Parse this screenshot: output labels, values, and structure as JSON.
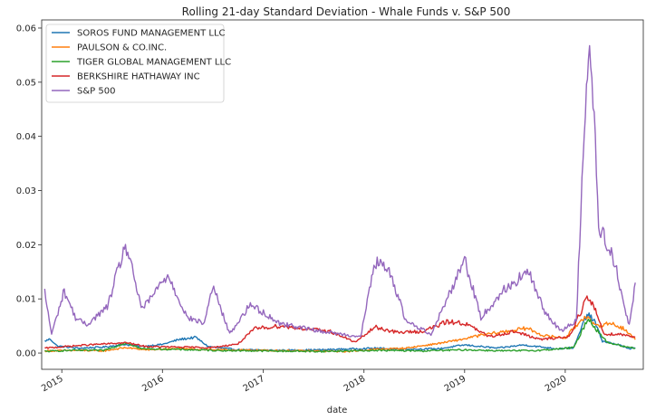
{
  "chart_data": {
    "type": "line",
    "title": "Rolling 21-day Standard Deviation - Whale Funds v. S&P 500",
    "xlabel": "date",
    "ylabel": "",
    "xlim": [
      "2014-10-20",
      "2020-10-10"
    ],
    "ylim": [
      -0.003,
      0.0615
    ],
    "x_ticks": [
      {
        "date": "2015-01-01",
        "label": "2015"
      },
      {
        "date": "2016-01-01",
        "label": "2016"
      },
      {
        "date": "2017-01-01",
        "label": "2017"
      },
      {
        "date": "2018-01-01",
        "label": "2018"
      },
      {
        "date": "2019-01-01",
        "label": "2019"
      },
      {
        "date": "2020-01-01",
        "label": "2020"
      }
    ],
    "y_ticks": [
      {
        "value": 0.0,
        "label": "0.00"
      },
      {
        "value": 0.01,
        "label": "0.01"
      },
      {
        "value": 0.02,
        "label": "0.02"
      },
      {
        "value": 0.03,
        "label": "0.03"
      },
      {
        "value": 0.04,
        "label": "0.04"
      },
      {
        "value": 0.05,
        "label": "0.05"
      },
      {
        "value": 0.06,
        "label": "0.06"
      }
    ],
    "grid": false,
    "legend_position": "top-left",
    "series": [
      {
        "name": "SOROS FUND MANAGEMENT LLC",
        "color": "#1f77b4",
        "points": [
          [
            "2014-10-31",
            0.0022
          ],
          [
            "2014-11-20",
            0.0026
          ],
          [
            "2014-12-15",
            0.0013
          ],
          [
            "2015-03-01",
            0.0009
          ],
          [
            "2015-06-01",
            0.0011
          ],
          [
            "2015-08-15",
            0.0016
          ],
          [
            "2015-10-15",
            0.0012
          ],
          [
            "2016-01-01",
            0.0016
          ],
          [
            "2016-03-01",
            0.0025
          ],
          [
            "2016-05-01",
            0.0029
          ],
          [
            "2016-06-15",
            0.0012
          ],
          [
            "2016-10-01",
            0.0006
          ],
          [
            "2017-03-01",
            0.0005
          ],
          [
            "2017-08-01",
            0.0006
          ],
          [
            "2018-02-10",
            0.0009
          ],
          [
            "2018-06-01",
            0.0007
          ],
          [
            "2018-10-01",
            0.0008
          ],
          [
            "2019-01-01",
            0.0015
          ],
          [
            "2019-05-01",
            0.0009
          ],
          [
            "2019-08-01",
            0.0015
          ],
          [
            "2019-12-01",
            0.0008
          ],
          [
            "2020-02-01",
            0.001
          ],
          [
            "2020-03-20",
            0.0072
          ],
          [
            "2020-04-15",
            0.006
          ],
          [
            "2020-05-15",
            0.0022
          ],
          [
            "2020-07-15",
            0.0015
          ],
          [
            "2020-08-15",
            0.0008
          ],
          [
            "2020-09-11",
            0.001
          ]
        ]
      },
      {
        "name": "PAULSON & CO.INC.",
        "color": "#ff7f0e",
        "points": [
          [
            "2014-10-31",
            0.0004
          ],
          [
            "2015-03-01",
            0.0005
          ],
          [
            "2015-06-01",
            0.0004
          ],
          [
            "2015-08-20",
            0.001
          ],
          [
            "2015-11-01",
            0.0006
          ],
          [
            "2016-03-01",
            0.0008
          ],
          [
            "2016-07-01",
            0.0006
          ],
          [
            "2017-01-01",
            0.0005
          ],
          [
            "2017-06-01",
            0.0004
          ],
          [
            "2017-11-01",
            0.0003
          ],
          [
            "2018-02-15",
            0.0007
          ],
          [
            "2018-06-01",
            0.0009
          ],
          [
            "2018-10-01",
            0.0018
          ],
          [
            "2018-12-20",
            0.0025
          ],
          [
            "2019-03-01",
            0.0033
          ],
          [
            "2019-06-01",
            0.004
          ],
          [
            "2019-08-15",
            0.0046
          ],
          [
            "2019-10-15",
            0.0032
          ],
          [
            "2020-01-01",
            0.0028
          ],
          [
            "2020-03-15",
            0.007
          ],
          [
            "2020-04-15",
            0.005
          ],
          [
            "2020-06-15",
            0.0055
          ],
          [
            "2020-08-01",
            0.0045
          ],
          [
            "2020-09-11",
            0.0025
          ]
        ]
      },
      {
        "name": "TIGER GLOBAL MANAGEMENT LLC",
        "color": "#2ca02c",
        "points": [
          [
            "2014-10-31",
            0.0003
          ],
          [
            "2015-02-01",
            0.0005
          ],
          [
            "2015-06-01",
            0.0005
          ],
          [
            "2015-08-25",
            0.0019
          ],
          [
            "2015-10-15",
            0.0008
          ],
          [
            "2016-02-01",
            0.0007
          ],
          [
            "2016-07-01",
            0.0005
          ],
          [
            "2017-01-01",
            0.0004
          ],
          [
            "2017-08-01",
            0.0003
          ],
          [
            "2018-02-10",
            0.0005
          ],
          [
            "2018-08-01",
            0.0004
          ],
          [
            "2019-01-01",
            0.0006
          ],
          [
            "2019-06-01",
            0.0004
          ],
          [
            "2019-10-01",
            0.0005
          ],
          [
            "2020-02-01",
            0.001
          ],
          [
            "2020-03-25",
            0.0065
          ],
          [
            "2020-04-20",
            0.0045
          ],
          [
            "2020-06-01",
            0.002
          ],
          [
            "2020-08-01",
            0.0012
          ],
          [
            "2020-09-11",
            0.0009
          ]
        ]
      },
      {
        "name": "BERKSHIRE HATHAWAY INC",
        "color": "#d62728",
        "points": [
          [
            "2014-10-31",
            0.0009
          ],
          [
            "2015-01-15",
            0.0012
          ],
          [
            "2015-04-01",
            0.0015
          ],
          [
            "2015-08-25",
            0.0019
          ],
          [
            "2015-11-01",
            0.0012
          ],
          [
            "2016-03-01",
            0.0011
          ],
          [
            "2016-07-01",
            0.001
          ],
          [
            "2016-10-01",
            0.0017
          ],
          [
            "2016-12-01",
            0.0045
          ],
          [
            "2017-03-01",
            0.005
          ],
          [
            "2017-06-01",
            0.0045
          ],
          [
            "2017-09-01",
            0.004
          ],
          [
            "2017-12-01",
            0.002
          ],
          [
            "2018-02-10",
            0.0048
          ],
          [
            "2018-05-01",
            0.0038
          ],
          [
            "2018-08-01",
            0.004
          ],
          [
            "2018-11-01",
            0.0058
          ],
          [
            "2019-01-01",
            0.0055
          ],
          [
            "2019-04-01",
            0.003
          ],
          [
            "2019-07-01",
            0.004
          ],
          [
            "2019-10-01",
            0.0025
          ],
          [
            "2020-01-15",
            0.003
          ],
          [
            "2020-03-20",
            0.0102
          ],
          [
            "2020-04-20",
            0.008
          ],
          [
            "2020-05-20",
            0.0035
          ],
          [
            "2020-07-15",
            0.0035
          ],
          [
            "2020-09-11",
            0.003
          ]
        ]
      },
      {
        "name": "S&P 500",
        "color": "#9467bd",
        "points": [
          [
            "2014-10-31",
            0.0112
          ],
          [
            "2014-11-25",
            0.0035
          ],
          [
            "2015-01-10",
            0.0115
          ],
          [
            "2015-02-20",
            0.0065
          ],
          [
            "2015-04-01",
            0.0052
          ],
          [
            "2015-06-15",
            0.0085
          ],
          [
            "2015-08-20",
            0.02
          ],
          [
            "2015-10-20",
            0.008
          ],
          [
            "2016-01-20",
            0.0145
          ],
          [
            "2016-04-01",
            0.0065
          ],
          [
            "2016-06-01",
            0.0055
          ],
          [
            "2016-07-01",
            0.0125
          ],
          [
            "2016-09-01",
            0.0035
          ],
          [
            "2016-11-15",
            0.009
          ],
          [
            "2017-03-01",
            0.0055
          ],
          [
            "2017-08-01",
            0.004
          ],
          [
            "2017-12-20",
            0.003
          ],
          [
            "2018-02-10",
            0.017
          ],
          [
            "2018-04-10",
            0.0145
          ],
          [
            "2018-06-01",
            0.006
          ],
          [
            "2018-09-01",
            0.0035
          ],
          [
            "2018-10-25",
            0.0095
          ],
          [
            "2019-01-01",
            0.0175
          ],
          [
            "2019-03-01",
            0.0065
          ],
          [
            "2019-05-20",
            0.0115
          ],
          [
            "2019-08-20",
            0.015
          ],
          [
            "2019-10-15",
            0.008
          ],
          [
            "2019-12-15",
            0.004
          ],
          [
            "2020-02-10",
            0.006
          ],
          [
            "2020-03-18",
            0.05
          ],
          [
            "2020-03-25",
            0.0585
          ],
          [
            "2020-04-15",
            0.045
          ],
          [
            "2020-05-01",
            0.023
          ],
          [
            "2020-06-20",
            0.0185
          ],
          [
            "2020-08-01",
            0.009
          ],
          [
            "2020-08-20",
            0.005
          ],
          [
            "2020-09-11",
            0.013
          ]
        ]
      }
    ]
  }
}
